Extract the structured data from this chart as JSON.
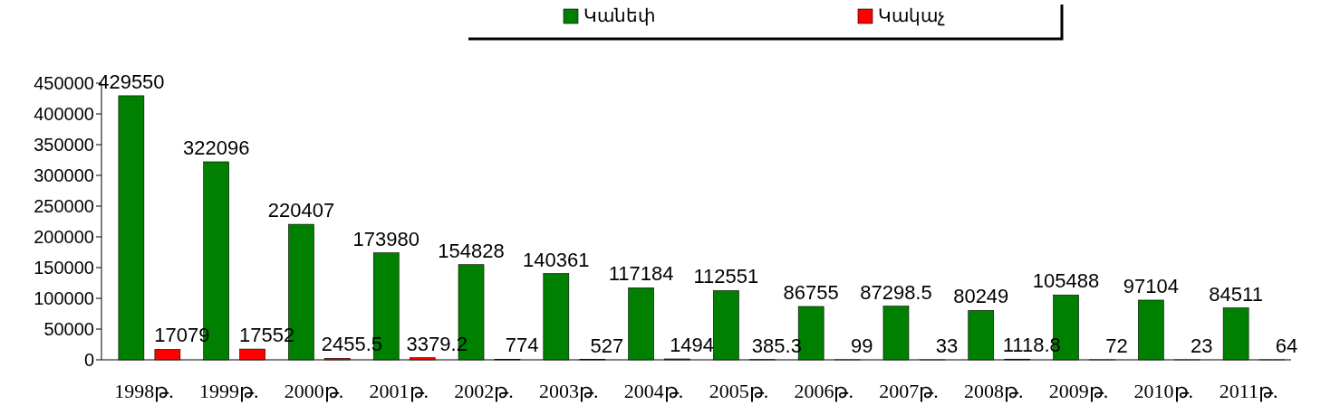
{
  "chart_data": {
    "type": "bar",
    "categories": [
      "1998թ.",
      "1999թ.",
      "2000թ.",
      "2001թ.",
      "2002թ.",
      "2003թ.",
      "2004թ.",
      "2005թ.",
      "2006թ.",
      "2007թ.",
      "2008թ.",
      "2009թ.",
      "2010թ.",
      "2011թ."
    ],
    "series": [
      {
        "name": "Կանեփ",
        "color": "#008000",
        "values": [
          429550,
          322096,
          220407,
          173980,
          154828,
          140361,
          117184,
          112551,
          86755,
          87298.5,
          80249,
          105488,
          97104,
          84511
        ]
      },
      {
        "name": "Կակաչ",
        "color": "#ff0000",
        "values": [
          17079,
          17552,
          2455.5,
          3379.2,
          774,
          527,
          1494,
          385.3,
          99,
          33,
          1118.8,
          72,
          23,
          64
        ]
      }
    ],
    "ylim": [
      0,
      450000
    ],
    "yticks": [
      0,
      50000,
      100000,
      150000,
      200000,
      250000,
      300000,
      350000,
      400000,
      450000
    ],
    "data_labels": true,
    "grid": false,
    "legend": "top"
  }
}
